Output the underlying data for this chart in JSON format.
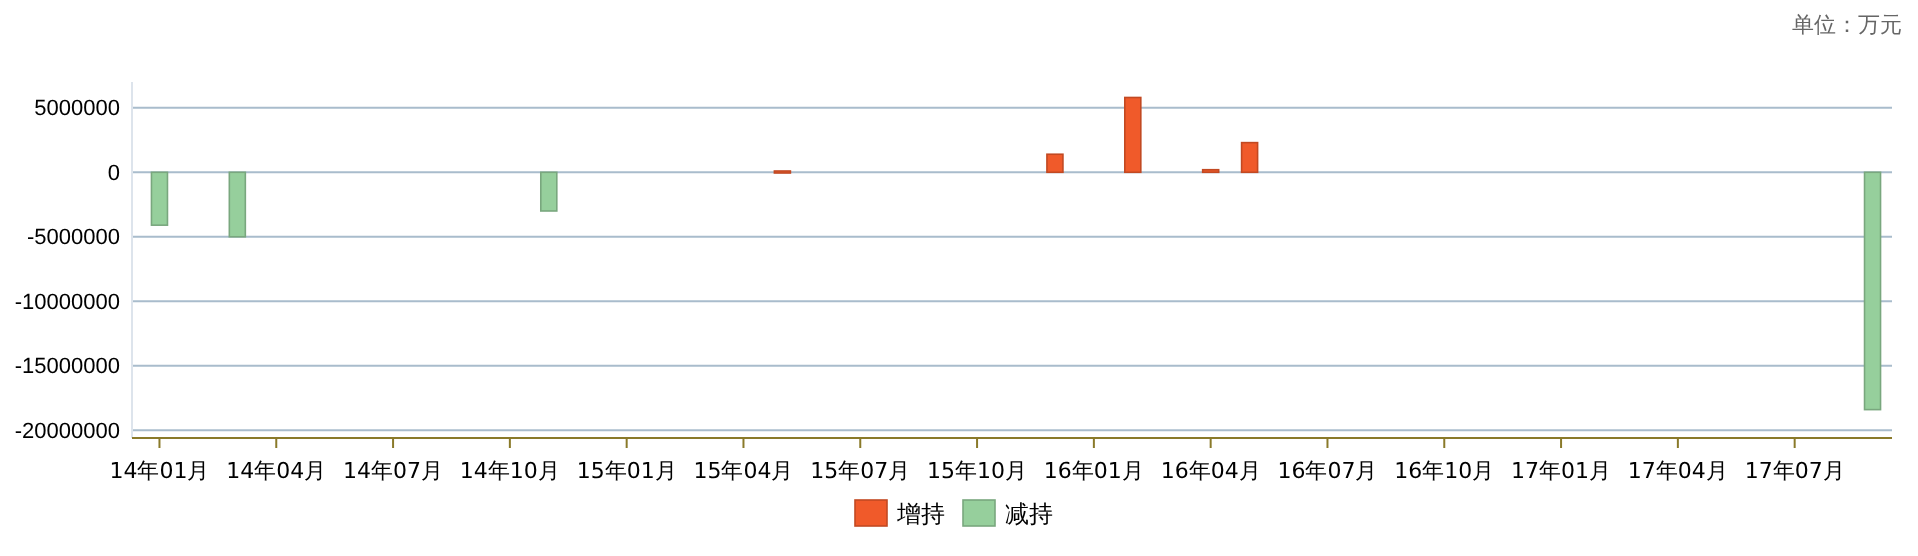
{
  "chart_data": {
    "type": "bar",
    "annotations": [
      "单位：万元"
    ],
    "categories": [
      "14年01月",
      null,
      null,
      "14年04月",
      null,
      null,
      "14年07月",
      null,
      null,
      "14年10月",
      null,
      null,
      "15年01月",
      null,
      null,
      "15年04月",
      null,
      null,
      "15年07月",
      null,
      null,
      "15年10月",
      null,
      null,
      "16年01月",
      null,
      null,
      "16年04月",
      null,
      null,
      "16年07月",
      null,
      null,
      "16年10月",
      null,
      null,
      "17年01月",
      null,
      null,
      "17年04月",
      null,
      null,
      "17年07月",
      null,
      null
    ],
    "ylim": [
      -20600000,
      7000000
    ],
    "yticks": [
      -20000000,
      -15000000,
      -10000000,
      -5000000,
      0,
      5000000
    ],
    "grid": "y",
    "legend": "bottom",
    "series": [
      {
        "name": "增持",
        "color": "#f05a2a",
        "values": [
          null,
          null,
          null,
          null,
          null,
          null,
          null,
          null,
          null,
          null,
          null,
          null,
          null,
          null,
          null,
          null,
          100000,
          null,
          null,
          null,
          null,
          null,
          null,
          1400000,
          null,
          5800000,
          null,
          200000,
          2300000,
          null,
          null,
          null,
          null,
          null,
          null,
          null,
          null,
          null,
          null,
          null,
          null,
          null,
          null,
          null,
          null
        ]
      },
      {
        "name": "减持",
        "color": "#96cf9c",
        "values": [
          -4100000,
          null,
          -5000000,
          null,
          null,
          null,
          null,
          null,
          null,
          null,
          -3000000,
          null,
          null,
          null,
          null,
          null,
          null,
          null,
          null,
          null,
          null,
          null,
          null,
          null,
          null,
          null,
          null,
          null,
          null,
          null,
          null,
          null,
          null,
          null,
          null,
          null,
          null,
          null,
          null,
          null,
          null,
          null,
          null,
          null,
          -18400000
        ]
      }
    ]
  }
}
